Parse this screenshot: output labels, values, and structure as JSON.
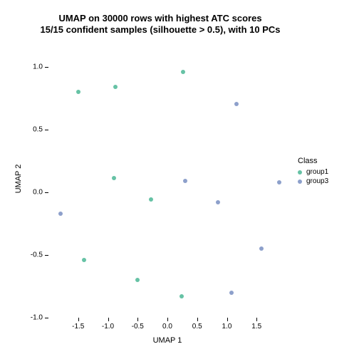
{
  "title": {
    "line1": "UMAP on 30000 rows with highest ATC scores",
    "line2": "15/15 confident samples (silhouette > 0.5), with 10 PCs",
    "fontsize": 13,
    "color": "#000000"
  },
  "axes": {
    "xlabel": "UMAP 1",
    "ylabel": "UMAP 2",
    "label_fontsize": 11,
    "tick_fontsize": 10,
    "xlim": [
      -2.0,
      2.0
    ],
    "ylim": [
      -1.0,
      1.1
    ],
    "xticks": [
      -1.5,
      -1.0,
      -0.5,
      0.0,
      0.5,
      1.0,
      1.5
    ],
    "yticks": [
      -1.0,
      -0.5,
      0.0,
      0.5,
      1.0
    ],
    "tick_color": "#000000",
    "background_color": "#ffffff"
  },
  "legend": {
    "title": "Class",
    "title_fontsize": 11,
    "item_fontsize": 10,
    "swatch_size": 6,
    "items": [
      {
        "label": "group1",
        "color": "#66c2a5"
      },
      {
        "label": "group3",
        "color": "#8da0cb"
      }
    ]
  },
  "scatter": {
    "type": "scatter",
    "marker_size": 6,
    "points": [
      {
        "x": -1.5,
        "y": 0.8,
        "class": "group1",
        "color": "#66c2a5"
      },
      {
        "x": -0.88,
        "y": 0.84,
        "class": "group1",
        "color": "#66c2a5"
      },
      {
        "x": 0.26,
        "y": 0.96,
        "class": "group1",
        "color": "#66c2a5"
      },
      {
        "x": -0.9,
        "y": 0.11,
        "class": "group1",
        "color": "#66c2a5"
      },
      {
        "x": -0.28,
        "y": -0.06,
        "class": "group1",
        "color": "#66c2a5"
      },
      {
        "x": -1.4,
        "y": -0.54,
        "class": "group1",
        "color": "#66c2a5"
      },
      {
        "x": -0.5,
        "y": -0.7,
        "class": "group1",
        "color": "#66c2a5"
      },
      {
        "x": 0.24,
        "y": -0.83,
        "class": "group1",
        "color": "#66c2a5"
      },
      {
        "x": 1.16,
        "y": 0.7,
        "class": "group3",
        "color": "#8da0cb"
      },
      {
        "x": 0.3,
        "y": 0.09,
        "class": "group3",
        "color": "#8da0cb"
      },
      {
        "x": 0.85,
        "y": -0.08,
        "class": "group3",
        "color": "#8da0cb"
      },
      {
        "x": 1.88,
        "y": 0.08,
        "class": "group3",
        "color": "#8da0cb"
      },
      {
        "x": -1.8,
        "y": -0.17,
        "class": "group3",
        "color": "#8da0cb"
      },
      {
        "x": 1.58,
        "y": -0.45,
        "class": "group3",
        "color": "#8da0cb"
      },
      {
        "x": 1.08,
        "y": -0.8,
        "class": "group3",
        "color": "#8da0cb"
      }
    ]
  }
}
